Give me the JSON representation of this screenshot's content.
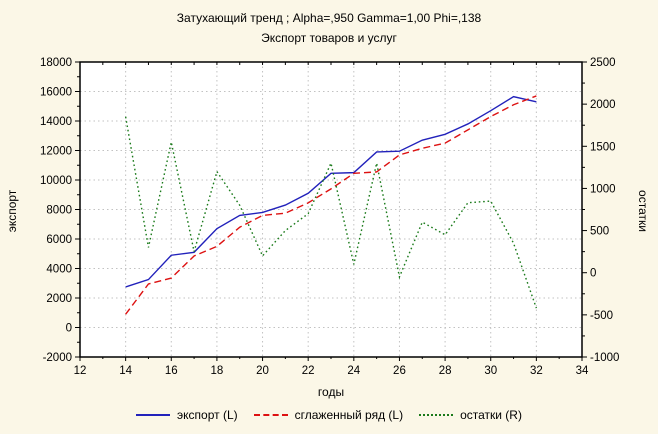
{
  "window": {
    "background_color": "#fbf7e7",
    "plot_background_color": "#ffffff",
    "grid_color": "#c2c2c2",
    "frame_color": "#000000"
  },
  "chart_data": {
    "type": "line",
    "title": "Затухающий тренд ; Alpha=,950 Gamma=1,00 Phi=,138",
    "subtitle": "Экспорт товаров и услуг",
    "xlabel": "годы",
    "ylabel_left": "экспорт",
    "ylabel_right": "остатки",
    "xlim": [
      12,
      34
    ],
    "ylim_left": [
      -2000,
      18000
    ],
    "ylim_right": [
      -1000,
      2500
    ],
    "x_ticks": [
      12,
      14,
      16,
      18,
      20,
      22,
      24,
      26,
      28,
      30,
      32,
      34
    ],
    "x_minor_step": 1,
    "y_ticks_left": [
      -2000,
      0,
      2000,
      4000,
      6000,
      8000,
      10000,
      12000,
      14000,
      16000,
      18000
    ],
    "y_minor_step_left": 1000,
    "y_ticks_right": [
      -1000,
      -500,
      0,
      500,
      1000,
      1500,
      2000,
      2500
    ],
    "y_minor_step_right": 250,
    "grid": true,
    "legend_position": "bottom",
    "x": [
      14,
      15,
      16,
      17,
      18,
      19,
      20,
      21,
      22,
      23,
      24,
      25,
      26,
      27,
      28,
      29,
      30,
      31,
      32
    ],
    "series": [
      {
        "name": "экспорт (L)",
        "axis": "left",
        "style": "solid",
        "color": "#2222bb",
        "values": [
          2750,
          3250,
          4900,
          5100,
          6700,
          7600,
          7800,
          8300,
          9100,
          10450,
          10500,
          11900,
          11950,
          12700,
          13100,
          13800,
          14700,
          15650,
          15300
        ]
      },
      {
        "name": "сглаженный ряд (L)",
        "axis": "left",
        "style": "dashed",
        "color": "#dd1111",
        "values": [
          900,
          2950,
          3350,
          4850,
          5500,
          6800,
          7600,
          7750,
          8450,
          9400,
          10450,
          10550,
          11700,
          12150,
          12500,
          13400,
          14300,
          15100,
          15700
        ]
      },
      {
        "name": "остатки (R)",
        "axis": "right",
        "style": "dotted",
        "color": "#1a7a1a",
        "values": [
          1850,
          300,
          1550,
          250,
          1200,
          800,
          200,
          500,
          700,
          1300,
          100,
          1300,
          -50,
          600,
          450,
          830,
          850,
          350,
          -420
        ]
      }
    ]
  }
}
